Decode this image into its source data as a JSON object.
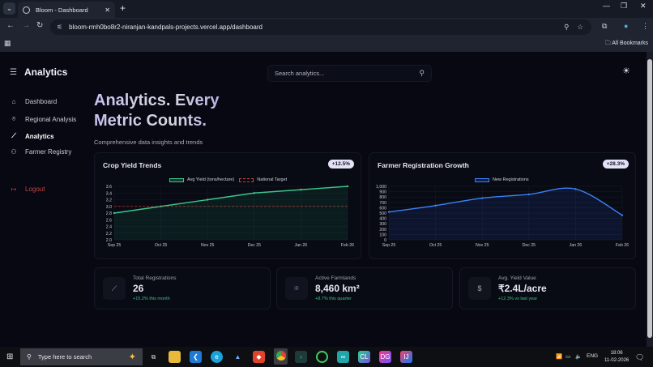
{
  "browser": {
    "tab_title": "Bloom - Dashboard",
    "url": "bloom-rmh0bo8r2-niranjan-kandpals-projects.vercel.app/dashboard",
    "all_bookmarks": "All Bookmarks"
  },
  "sidebar": {
    "title": "Analytics",
    "items": [
      {
        "label": "Dashboard",
        "icon": "home-icon"
      },
      {
        "label": "Regional Analysis",
        "icon": "map-pin-icon"
      },
      {
        "label": "Analytics",
        "icon": "chart-line-icon",
        "active": true
      },
      {
        "label": "Farmer Registry",
        "icon": "users-icon"
      }
    ],
    "logout": "Logout"
  },
  "search": {
    "placeholder": "Search analytics..."
  },
  "hero": {
    "line1": "Analytics. Every",
    "line2": "Metric Counts.",
    "subtitle": "Comprehensive data insights and trends"
  },
  "cards": {
    "crop": {
      "title": "Crop Yield Trends",
      "badge": "+12.5%",
      "legend1": "Avg Yield (tons/hectare)",
      "legend2": "National Target"
    },
    "farmer": {
      "title": "Farmer Registration Growth",
      "badge": "+28.3%",
      "legend1": "New Registrations"
    }
  },
  "chart_data": [
    {
      "type": "line",
      "title": "Crop Yield Trends",
      "categories": [
        "Sep 25",
        "Oct 25",
        "Nov 25",
        "Dec 25",
        "Jan 26",
        "Feb 26"
      ],
      "series": [
        {
          "name": "Avg Yield (tons/hectare)",
          "values": [
            2.8,
            3.0,
            3.2,
            3.4,
            3.5,
            3.6
          ],
          "color": "#3ec48a"
        },
        {
          "name": "National Target",
          "values": [
            3.0,
            3.0,
            3.0,
            3.0,
            3.0,
            3.0
          ],
          "color": "#c0443f",
          "dashed": true
        }
      ],
      "yticks": [
        "3.6",
        "3.4",
        "3.2",
        "3.0",
        "2.8",
        "2.6",
        "2.4",
        "2.2",
        "2.0"
      ],
      "ylim": [
        2.0,
        3.6
      ],
      "legend_position": "top",
      "grid": true
    },
    {
      "type": "area",
      "title": "Farmer Registration Growth",
      "categories": [
        "Sep 25",
        "Oct 25",
        "Nov 25",
        "Dec 25",
        "Jan 26",
        "Feb 26"
      ],
      "series": [
        {
          "name": "New Registrations",
          "values": [
            520,
            640,
            780,
            850,
            950,
            460
          ],
          "color": "#3b82f6"
        }
      ],
      "yticks": [
        "1,000",
        "900",
        "800",
        "700",
        "600",
        "500",
        "400",
        "300",
        "200",
        "100",
        "0"
      ],
      "ylim": [
        0,
        1000
      ],
      "legend_position": "top",
      "grid": true
    }
  ],
  "stats": [
    {
      "label": "Total Registrations",
      "value": "26",
      "change": "+15.2% this month",
      "icon": "chart-line-icon",
      "glyph": "⟋"
    },
    {
      "label": "Active Farmlands",
      "value": "8,460 km²",
      "change": "+8.7% this quarter",
      "icon": "map-pin-icon",
      "glyph": "⌾"
    },
    {
      "label": "Avg. Yield Value",
      "value": "₹2.4L/acre",
      "change": "+12.3% vs last year",
      "icon": "dollar-icon",
      "glyph": "$"
    }
  ],
  "taskbar": {
    "search_placeholder": "Type here to search",
    "lang": "ENG",
    "time": "18:06",
    "date": "11-02-2026"
  }
}
